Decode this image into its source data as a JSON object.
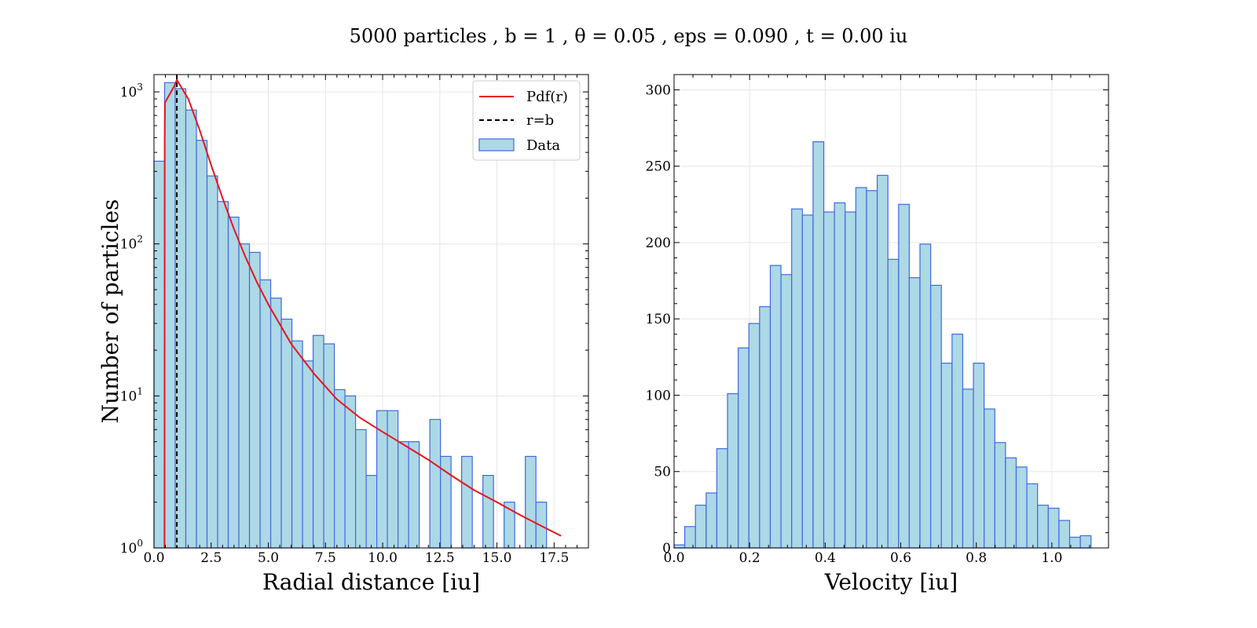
{
  "title": "5000 particles , b = 1 , θ = 0.05 , eps = 0.090 , t = 0.00 iu",
  "colors": {
    "bar_fill": "#add8e6",
    "bar_edge": "#4169e1",
    "pdf": "#e8141e",
    "rb": "#000000",
    "grid": "#e6e6e6"
  },
  "chart_data": [
    {
      "type": "bar",
      "scale_y": "log",
      "xlabel": "Radial distance [iu]",
      "ylabel": "Number of particles",
      "xlim": [
        0,
        19
      ],
      "ylim": [
        1,
        1300
      ],
      "x_ticks": [
        0,
        2.5,
        5,
        7.5,
        10,
        12.5,
        15,
        17.5
      ],
      "x_tick_labels": [
        "0.0",
        "2.5",
        "5.0",
        "7.5",
        "10.0",
        "12.5",
        "15.0",
        "17.5"
      ],
      "y_ticks": [
        1,
        10,
        100,
        1000
      ],
      "y_tick_labels": [
        "10",
        "10",
        "10",
        "10"
      ],
      "y_tick_exps": [
        "0",
        "1",
        "2",
        "3"
      ],
      "grid": true,
      "legend_position": "top-right",
      "legend": [
        "Pdf(r)",
        "r=b",
        "Data"
      ],
      "bins": {
        "start": 0,
        "width": 0.464
      },
      "values": [
        350,
        1150,
        1050,
        760,
        480,
        280,
        190,
        150,
        100,
        88,
        58,
        44,
        32,
        23,
        17,
        25,
        22,
        11,
        10,
        6,
        3,
        8,
        8,
        5,
        5,
        0,
        7,
        4,
        0,
        4,
        0,
        3,
        0,
        2,
        0,
        4,
        2
      ],
      "pdf_curve": {
        "x": [
          0.46,
          0.47,
          0.48,
          0.9,
          1.0,
          1.5,
          2.0,
          2.5,
          3.0,
          3.5,
          4.0,
          4.5,
          5.0,
          6.0,
          7.0,
          8.0,
          9.0,
          10.0,
          11.0,
          12.0,
          13.0,
          14.0,
          15.0,
          16.0,
          17.0,
          17.8
        ],
        "y": [
          1.0,
          500,
          850,
          1100,
          1200,
          900,
          560,
          330,
          200,
          125,
          82,
          56,
          40,
          22,
          14,
          9.5,
          7.2,
          5.8,
          4.7,
          3.8,
          3.0,
          2.4,
          2.0,
          1.65,
          1.38,
          1.2
        ]
      },
      "rb_line_x": 1.0
    },
    {
      "type": "bar",
      "xlabel": "Velocity [iu]",
      "ylabel": "",
      "xlim": [
        0,
        1.15
      ],
      "ylim": [
        0,
        310
      ],
      "x_ticks": [
        0,
        0.2,
        0.4,
        0.6,
        0.8,
        1.0
      ],
      "x_tick_labels": [
        "0.0",
        "0.2",
        "0.4",
        "0.6",
        "0.8",
        "1.0"
      ],
      "y_ticks": [
        0,
        50,
        100,
        150,
        200,
        250,
        300
      ],
      "y_tick_labels": [
        "0",
        "50",
        "100",
        "150",
        "200",
        "250",
        "300"
      ],
      "grid": true,
      "bins": {
        "start": 0,
        "width": 0.0283
      },
      "values": [
        2,
        14,
        28,
        36,
        65,
        101,
        131,
        147,
        158,
        185,
        179,
        222,
        218,
        266,
        220,
        226,
        220,
        236,
        234,
        244,
        189,
        225,
        177,
        199,
        172,
        121,
        140,
        104,
        121,
        91,
        69,
        59,
        53,
        42,
        28,
        26,
        18,
        7,
        8
      ]
    }
  ]
}
